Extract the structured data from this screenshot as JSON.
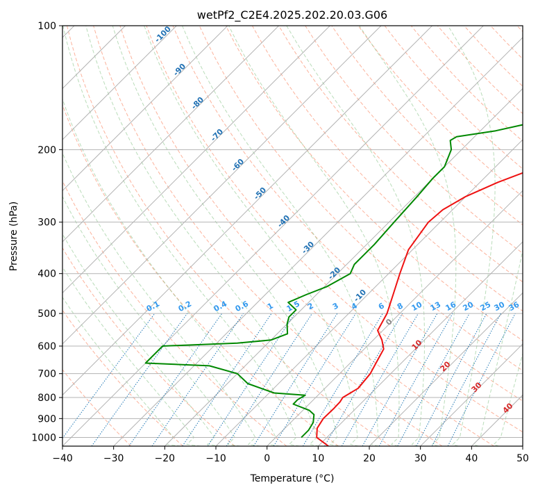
{
  "chart_data": {
    "type": "line",
    "title": "wetPf2_C2E4.2025.202.20.03.G06",
    "xlabel": "Temperature (°C)",
    "ylabel": "Pressure (hPa)",
    "xlim": [
      -40,
      50
    ],
    "ylim": [
      1050,
      100
    ],
    "y_scale": "log",
    "grid": true,
    "x_ticks": [
      "−40",
      "−30",
      "−20",
      "−10",
      "0",
      "10",
      "20",
      "30",
      "40",
      "50"
    ],
    "y_ticks": [
      "100",
      "200",
      "300",
      "400",
      "500",
      "600",
      "700",
      "800",
      "900",
      "1000"
    ],
    "x_tick_values": [
      -40,
      -30,
      -20,
      -10,
      0,
      10,
      20,
      30,
      40,
      50
    ],
    "y_tick_values": [
      100,
      200,
      300,
      400,
      500,
      600,
      700,
      800,
      900,
      1000
    ],
    "series": [
      {
        "color": "#ee1111",
        "points": [
          [
            12.0,
            1050
          ],
          [
            8.0,
            1000
          ],
          [
            6.3,
            950
          ],
          [
            5.6,
            900
          ],
          [
            5.7,
            850
          ],
          [
            5.6,
            820
          ],
          [
            5.3,
            800
          ],
          [
            6.5,
            760
          ],
          [
            6.0,
            700
          ],
          [
            4.8,
            650
          ],
          [
            3.8,
            610
          ],
          [
            1.7,
            580
          ],
          [
            -1.0,
            550
          ],
          [
            -2.5,
            500
          ],
          [
            -5.0,
            450
          ],
          [
            -7.8,
            400
          ],
          [
            -10.8,
            350
          ],
          [
            -12.3,
            300
          ],
          [
            -11.9,
            280
          ],
          [
            -10.0,
            260
          ],
          [
            -6.5,
            240
          ],
          [
            -1.5,
            220
          ],
          [
            4.0,
            200
          ],
          [
            6.0,
            190
          ],
          [
            7.6,
            180
          ],
          [
            10.0,
            160
          ],
          [
            13.7,
            140
          ],
          [
            18.5,
            125
          ],
          [
            24.5,
            115
          ],
          [
            27.0,
            110
          ],
          [
            28.0,
            105
          ],
          [
            29.0,
            100
          ]
        ]
      },
      {
        "color": "#008800",
        "points": [
          [
            5.0,
            1000
          ],
          [
            5.0,
            960
          ],
          [
            4.4,
            920
          ],
          [
            3.0,
            880
          ],
          [
            1.3,
            860
          ],
          [
            -3.1,
            830
          ],
          [
            -3.1,
            810
          ],
          [
            -2.5,
            790
          ],
          [
            -9.0,
            780
          ],
          [
            -16.0,
            740
          ],
          [
            -20.0,
            700
          ],
          [
            -27.0,
            670
          ],
          [
            -40.0,
            660
          ],
          [
            -40.0,
            600
          ],
          [
            -26.0,
            590
          ],
          [
            -20.0,
            580
          ],
          [
            -18.0,
            560
          ],
          [
            -19.0,
            545
          ],
          [
            -20.0,
            530
          ],
          [
            -21.0,
            510
          ],
          [
            -21.0,
            490
          ],
          [
            -24.0,
            470
          ],
          [
            -22.0,
            450
          ],
          [
            -19.5,
            430
          ],
          [
            -17.5,
            400
          ],
          [
            -18.5,
            380
          ],
          [
            -18.5,
            360
          ],
          [
            -18.5,
            340
          ],
          [
            -19.0,
            300
          ],
          [
            -19.5,
            260
          ],
          [
            -20.0,
            235
          ],
          [
            -20.0,
            220
          ],
          [
            -22.0,
            200
          ],
          [
            -24.0,
            190
          ],
          [
            -23.5,
            186
          ],
          [
            -17.0,
            180
          ],
          [
            -10.0,
            170
          ],
          [
            -4.0,
            150
          ],
          [
            -1.0,
            120
          ],
          [
            0.0,
            105
          ],
          [
            0.5,
            100
          ]
        ]
      }
    ],
    "dry_adiabat_labels": [
      "-100",
      "-90",
      "-80",
      "-70",
      "-60",
      "-50",
      "-40",
      "-30",
      "-20",
      "-10"
    ],
    "mixing_ratio_labels": [
      "0.1",
      "0.2",
      "0.4",
      "0.6",
      "1",
      "1.5",
      "2",
      "3",
      "4",
      "6",
      "8",
      "10",
      "13",
      "16",
      "20",
      "25",
      "30",
      "36"
    ],
    "moist_adiabat_labels": [
      "0",
      "10",
      "20",
      "30",
      "40"
    ]
  }
}
